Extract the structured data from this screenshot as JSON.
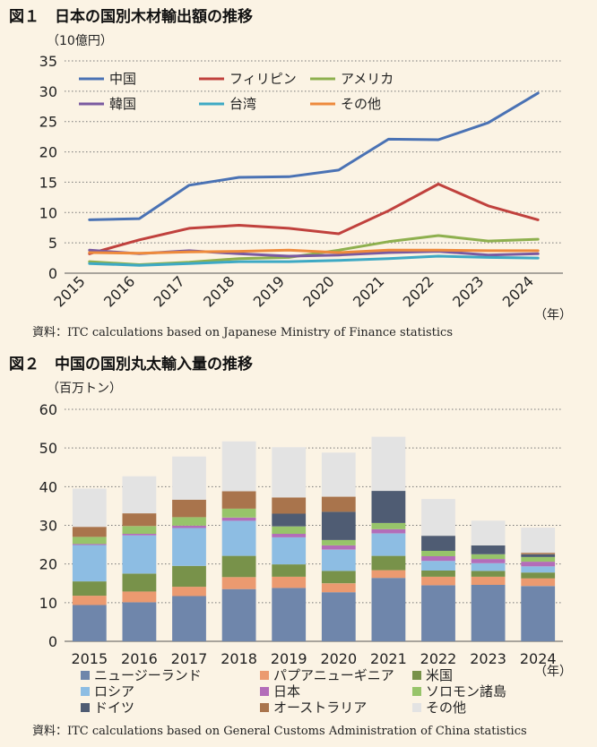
{
  "chart_data": [
    {
      "type": "line",
      "title": "図１　日本の国別木材輸出額の推移",
      "ylabel": "（10億円）",
      "x_unit": "（年）",
      "ylim": [
        0,
        35
      ],
      "yticks": [
        0,
        5,
        10,
        15,
        20,
        25,
        30,
        35
      ],
      "grid": true,
      "legend_position": "top",
      "categories": [
        "2015",
        "2016",
        "2017",
        "2018",
        "2019",
        "2020",
        "2021",
        "2022",
        "2023",
        "2024"
      ],
      "series": [
        {
          "name": "中国",
          "color": "#4a72b4",
          "values": [
            8.8,
            9.0,
            14.5,
            15.8,
            15.9,
            17.0,
            22.1,
            22.0,
            24.8,
            29.7
          ]
        },
        {
          "name": "フィリピン",
          "color": "#c0413d",
          "values": [
            3.2,
            5.5,
            7.4,
            7.9,
            7.4,
            6.5,
            10.3,
            14.7,
            11.1,
            8.8
          ]
        },
        {
          "name": "アメリカ",
          "color": "#8eb04e",
          "values": [
            1.9,
            1.4,
            1.8,
            2.4,
            2.6,
            3.8,
            5.2,
            6.2,
            5.3,
            5.6
          ]
        },
        {
          "name": "韓国",
          "color": "#7a5aa0",
          "values": [
            3.8,
            3.2,
            3.7,
            3.2,
            2.8,
            3.0,
            3.4,
            3.6,
            3.0,
            3.2
          ]
        },
        {
          "name": "台湾",
          "color": "#3ea9c4",
          "values": [
            1.6,
            1.3,
            1.6,
            1.9,
            1.9,
            2.1,
            2.4,
            2.8,
            2.6,
            2.5
          ]
        },
        {
          "name": "その他",
          "color": "#ee8a3c",
          "values": [
            3.4,
            3.3,
            3.5,
            3.6,
            3.8,
            3.4,
            3.8,
            3.8,
            3.7,
            3.7
          ]
        }
      ],
      "source": "資料：ITC calculations based on Japanese Ministry of Finance statistics"
    },
    {
      "type": "bar",
      "stacked": true,
      "title": "図２　中国の国別丸太輸入量の推移",
      "ylabel": "（百万トン）",
      "x_unit": "（年）",
      "ylim": [
        0,
        60
      ],
      "yticks": [
        0,
        10,
        20,
        30,
        40,
        50,
        60
      ],
      "grid": true,
      "legend_position": "bottom",
      "categories": [
        "2015",
        "2016",
        "2017",
        "2018",
        "2019",
        "2020",
        "2021",
        "2022",
        "2023",
        "2024"
      ],
      "series": [
        {
          "name": "ニュージーランド",
          "color": "#6f86ab",
          "values": [
            9.4,
            10.1,
            11.7,
            13.5,
            13.8,
            12.7,
            16.4,
            14.5,
            14.6,
            14.3
          ]
        },
        {
          "name": "パプアニューギニア",
          "color": "#eb9a70",
          "values": [
            2.4,
            2.8,
            2.4,
            3.1,
            2.9,
            2.3,
            2.0,
            2.2,
            2.1,
            2.0
          ]
        },
        {
          "name": "米国",
          "color": "#78924a",
          "values": [
            3.7,
            4.6,
            5.4,
            5.5,
            3.2,
            3.2,
            3.7,
            1.6,
            1.5,
            1.5
          ]
        },
        {
          "name": "ロシア",
          "color": "#8dbde3",
          "values": [
            9.4,
            9.9,
            9.8,
            9.1,
            7.0,
            5.5,
            5.8,
            2.5,
            2.0,
            1.6
          ]
        },
        {
          "name": "日本",
          "color": "#b36db9",
          "values": [
            0.3,
            0.4,
            0.6,
            0.8,
            0.9,
            1.1,
            1.1,
            1.2,
            1.1,
            1.2
          ]
        },
        {
          "name": "ソロモン諸島",
          "color": "#97c46a",
          "values": [
            1.8,
            2.0,
            2.2,
            2.3,
            1.9,
            1.4,
            1.6,
            1.4,
            1.2,
            1.2
          ]
        },
        {
          "name": "ドイツ",
          "color": "#4f5c73",
          "values": [
            0.0,
            0.0,
            0.0,
            0.0,
            3.3,
            7.3,
            8.3,
            3.9,
            2.3,
            0.7
          ]
        },
        {
          "name": "オーストラリア",
          "color": "#a9744c",
          "values": [
            2.6,
            3.3,
            4.5,
            4.5,
            4.2,
            3.9,
            0.0,
            0.0,
            0.0,
            0.4
          ]
        },
        {
          "name": "その他",
          "color": "#e3e3e3",
          "values": [
            9.9,
            9.6,
            11.2,
            12.9,
            13.0,
            11.4,
            14.0,
            9.5,
            6.4,
            6.5
          ]
        }
      ],
      "source": "資料：ITC calculations based on General Customs Administration of China statistics"
    }
  ]
}
